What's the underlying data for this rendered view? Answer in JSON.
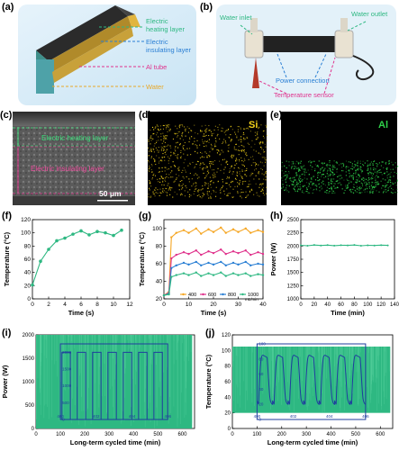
{
  "panels": {
    "a": {
      "label": "(a)",
      "annotations": [
        "Electric heating layer",
        "Electric insulating layer",
        "Al tube",
        "Water"
      ],
      "colors": {
        "heating": "#2eb882",
        "insulating": "#2a7fd4",
        "al_tube": "#e0328c",
        "water": "#e8a82a"
      }
    },
    "b": {
      "label": "(b)",
      "annotations": {
        "water_inlet": "Water inlet",
        "water_outlet": "Water outlet",
        "power_connection": "Power connection",
        "temperature_sensor": "Temperature sensor"
      }
    },
    "c": {
      "label": "(c)",
      "heating_layer": "Electric heating layer",
      "insulating_layer": "Electric insulating layer",
      "scale_bar": "50 μm"
    },
    "d": {
      "label": "(d)",
      "element": "Si",
      "color": "#f2d21a"
    },
    "e": {
      "label": "(e)",
      "element": "Al",
      "color": "#2fd14a"
    },
    "f": {
      "label": "(f)"
    },
    "g": {
      "label": "(g)"
    },
    "h": {
      "label": "(h)"
    },
    "i": {
      "label": "(i)"
    },
    "j": {
      "label": "(j)"
    }
  },
  "chart_data": [
    {
      "id": "f",
      "type": "line",
      "xlabel": "Time (s)",
      "ylabel": "Temperature (°C)",
      "xlim": [
        0,
        12
      ],
      "ylim": [
        0,
        120
      ],
      "xticks": [
        0,
        2,
        4,
        6,
        8,
        10,
        12
      ],
      "yticks": [
        0,
        20,
        40,
        60,
        80,
        100,
        120
      ],
      "series": [
        {
          "x": [
            0,
            1,
            2,
            3,
            4,
            5,
            6,
            7,
            8,
            9,
            10,
            11
          ],
          "y": [
            21,
            57,
            75,
            88,
            92,
            98,
            103,
            97,
            102,
            100,
            96,
            104
          ],
          "color": "#2eb882"
        }
      ]
    },
    {
      "id": "g",
      "type": "line",
      "xlabel": "Time (s)",
      "ylabel": "Temperature (°C)",
      "xlim": [
        0,
        40
      ],
      "ylim": [
        20,
        110
      ],
      "xticks": [
        0,
        10,
        20,
        30,
        40
      ],
      "yticks": [
        20,
        40,
        60,
        80,
        100
      ],
      "legend_position": "bottom-right",
      "series": [
        {
          "name": "400",
          "color": "#f5a623",
          "x": [
            0,
            2,
            3,
            5,
            8,
            10,
            13,
            15,
            18,
            20,
            23,
            25,
            28,
            30,
            33,
            35,
            38,
            40
          ],
          "y": [
            24,
            28,
            90,
            95,
            98,
            95,
            100,
            94,
            99,
            96,
            101,
            95,
            99,
            96,
            100,
            95,
            98,
            96
          ]
        },
        {
          "name": "600",
          "color": "#e0328c",
          "x": [
            0,
            2,
            3,
            5,
            8,
            10,
            13,
            15,
            18,
            20,
            23,
            25,
            28,
            30,
            33,
            35,
            38,
            40
          ],
          "y": [
            24,
            27,
            66,
            70,
            73,
            71,
            75,
            70,
            74,
            72,
            76,
            71,
            74,
            72,
            75,
            70,
            73,
            71
          ]
        },
        {
          "name": "800",
          "color": "#2a7fd4",
          "x": [
            0,
            2,
            3,
            5,
            8,
            10,
            13,
            15,
            18,
            20,
            23,
            25,
            28,
            30,
            33,
            35,
            38,
            40
          ],
          "y": [
            24,
            26,
            55,
            58,
            61,
            59,
            62,
            58,
            61,
            59,
            62,
            58,
            61,
            59,
            62,
            58,
            60,
            59
          ]
        },
        {
          "name": "1000",
          "color": "#2eb882",
          "x": [
            0,
            2,
            3,
            5,
            8,
            10,
            13,
            15,
            18,
            20,
            23,
            25,
            28,
            30,
            33,
            35,
            38,
            40
          ],
          "y": [
            24,
            25,
            45,
            47,
            49,
            47,
            50,
            46,
            49,
            47,
            50,
            46,
            49,
            47,
            49,
            46,
            48,
            47
          ]
        }
      ],
      "legend_suffix": "mL/min"
    },
    {
      "id": "h",
      "type": "line",
      "xlabel": "Time (min)",
      "ylabel": "Power (W)",
      "xlim": [
        0,
        140
      ],
      "ylim": [
        1000,
        2500
      ],
      "xticks": [
        0,
        20,
        40,
        60,
        80,
        100,
        120,
        140
      ],
      "yticks": [
        1000,
        1250,
        1500,
        1750,
        2000,
        2250,
        2500
      ],
      "series": [
        {
          "x": [
            0,
            10,
            20,
            30,
            40,
            50,
            60,
            70,
            80,
            90,
            100,
            110,
            120,
            130
          ],
          "y": [
            2015,
            2005,
            2020,
            2010,
            2018,
            2008,
            2016,
            2012,
            2020,
            2006,
            2015,
            2010,
            2017,
            2012
          ],
          "color": "#2eb882"
        }
      ]
    },
    {
      "id": "i",
      "type": "area",
      "xlabel": "Long-term cycled time (min)",
      "ylabel": "Power (W)",
      "xlim": [
        0,
        650
      ],
      "ylim": [
        0,
        2000
      ],
      "xticks": [
        0,
        100,
        200,
        300,
        400,
        500,
        600
      ],
      "yticks": [
        0,
        500,
        1000,
        1500,
        2000
      ],
      "band": {
        "x": [
          0,
          640
        ],
        "low": 0,
        "high": 2000,
        "color": "#2eb882"
      },
      "inset": {
        "xlim": [
          400,
          406
        ],
        "ylim": [
          0,
          2250
        ],
        "xticks": [
          400,
          402,
          404,
          406
        ],
        "yticks": [
          0,
          500,
          1000,
          1500,
          2000
        ],
        "cycles": 7,
        "high": 2000,
        "low": 0,
        "color": "#1f3d9e"
      }
    },
    {
      "id": "j",
      "type": "area",
      "xlabel": "Long-term cycled time (min)",
      "ylabel": "Temperature (°C)",
      "xlim": [
        0,
        650
      ],
      "ylim": [
        0,
        120
      ],
      "xticks": [
        0,
        100,
        200,
        300,
        400,
        500,
        600
      ],
      "yticks": [
        0,
        20,
        40,
        60,
        80,
        100,
        120
      ],
      "band": {
        "x": [
          0,
          640
        ],
        "low": 20,
        "high": 105,
        "color": "#2eb882"
      },
      "inset": {
        "xlim": [
          400,
          406
        ],
        "ylim": [
          0,
          100
        ],
        "xticks": [
          400,
          402,
          404,
          406
        ],
        "yticks": [
          0,
          20,
          40,
          60,
          80,
          100
        ],
        "cycles": 7,
        "high": 85,
        "low": 20,
        "color": "#1f3d9e"
      }
    }
  ]
}
